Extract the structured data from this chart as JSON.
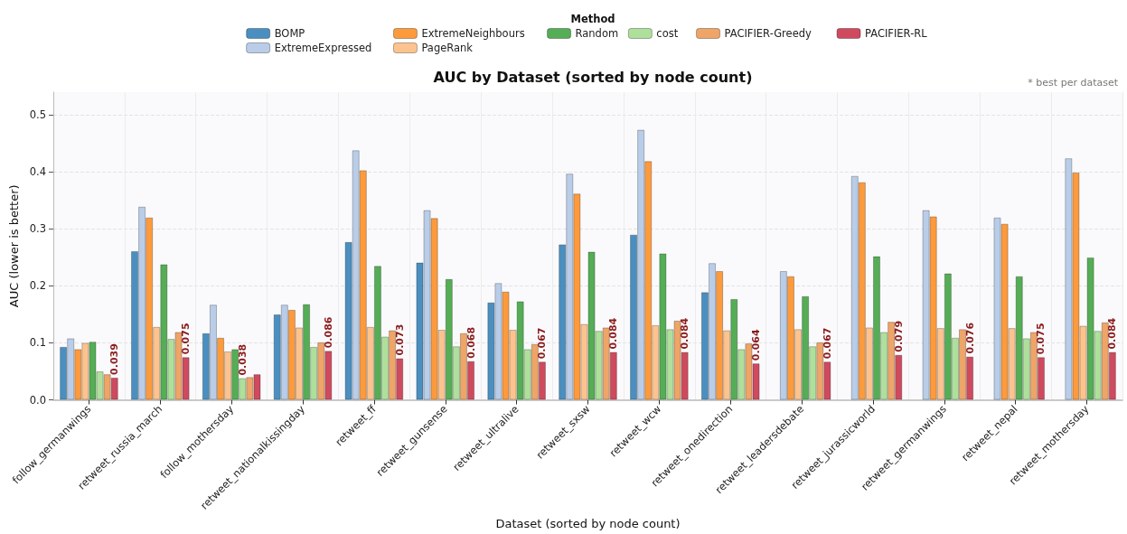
{
  "chart_data": {
    "type": "bar",
    "title": "AUC by Dataset (sorted by node count)",
    "xlabel": "Dataset (sorted by node count)",
    "ylabel": "AUC (lower is better)",
    "legend_title": "Method",
    "annotations": [
      "* best per dataset"
    ],
    "categories": [
      "follow_germanwings",
      "retweet_russia_march",
      "follow_mothersday",
      "retweet_nationalkissingday",
      "retweet_ff",
      "retweet_gunsense",
      "retweet_ultralive",
      "retweet_sxsw",
      "retweet_wcw",
      "retweet_onedirection",
      "retweet_leadersdebate",
      "retweet_jurassicworld",
      "retweet_germanwings",
      "retweet_nepal",
      "retweet_mothersday"
    ],
    "series": [
      {
        "name": "BOMP",
        "color": "#4a8fc0",
        "values": [
          0.093,
          0.261,
          0.117,
          0.15,
          0.277,
          0.241,
          0.171,
          0.273,
          0.29,
          0.189,
          null,
          null,
          null,
          null,
          null
        ]
      },
      {
        "name": "ExtremeExpressed",
        "color": "#b9cde8",
        "values": [
          0.108,
          0.339,
          0.167,
          0.167,
          0.438,
          0.333,
          0.205,
          0.397,
          0.474,
          0.24,
          0.226,
          0.393,
          0.333,
          0.32,
          0.424
        ]
      },
      {
        "name": "ExtremeNeighbours",
        "color": "#fd9a3c",
        "values": [
          0.089,
          0.32,
          0.109,
          0.158,
          0.403,
          0.319,
          0.19,
          0.362,
          0.419,
          0.226,
          0.217,
          0.382,
          0.322,
          0.309,
          0.399
        ]
      },
      {
        "name": "PageRank",
        "color": "#fdc38e",
        "values": [
          0.1,
          0.128,
          0.085,
          0.127,
          0.128,
          0.123,
          0.123,
          0.133,
          0.131,
          0.122,
          0.124,
          0.127,
          0.126,
          0.126,
          0.13
        ]
      },
      {
        "name": "Random",
        "color": "#55ad55",
        "values": [
          0.102,
          0.238,
          0.089,
          0.168,
          0.235,
          0.212,
          0.173,
          0.26,
          0.257,
          0.177,
          0.182,
          0.252,
          0.222,
          0.217,
          0.25
        ]
      },
      {
        "name": "cost",
        "color": "#aee09b",
        "values": [
          0.05,
          0.107,
          0.038,
          0.093,
          0.111,
          0.094,
          0.089,
          0.121,
          0.124,
          0.089,
          0.094,
          0.119,
          0.109,
          0.108,
          0.121
        ],
        "value_labels": [
          null,
          null,
          "0.038",
          null,
          null,
          null,
          null,
          null,
          null,
          null,
          null,
          null,
          null,
          null,
          null
        ]
      },
      {
        "name": "PACIFIER-Greedy",
        "color": "#eea567",
        "values": [
          0.045,
          0.119,
          0.04,
          0.101,
          0.122,
          0.117,
          0.098,
          0.127,
          0.139,
          0.099,
          0.101,
          0.137,
          0.124,
          0.119,
          0.136
        ]
      },
      {
        "name": "PACIFIER-RL",
        "color": "#cf4a5e",
        "values": [
          0.039,
          0.075,
          0.045,
          0.086,
          0.073,
          0.068,
          0.067,
          0.084,
          0.084,
          0.064,
          0.067,
          0.079,
          0.076,
          0.075,
          0.084
        ],
        "value_labels": [
          "0.039",
          "0.075",
          null,
          "0.086",
          "0.073",
          "0.068",
          "0.067",
          "0.084",
          "0.084",
          "0.064",
          "0.067",
          "0.079",
          "0.076",
          "0.075",
          "0.084"
        ]
      }
    ],
    "ylim": [
      0,
      0.54
    ],
    "yticks": [
      {
        "value": 0,
        "label": "0.0"
      },
      0.1,
      0.2,
      0.3,
      0.4,
      0.5
    ],
    "grid": true,
    "legend": "top"
  }
}
